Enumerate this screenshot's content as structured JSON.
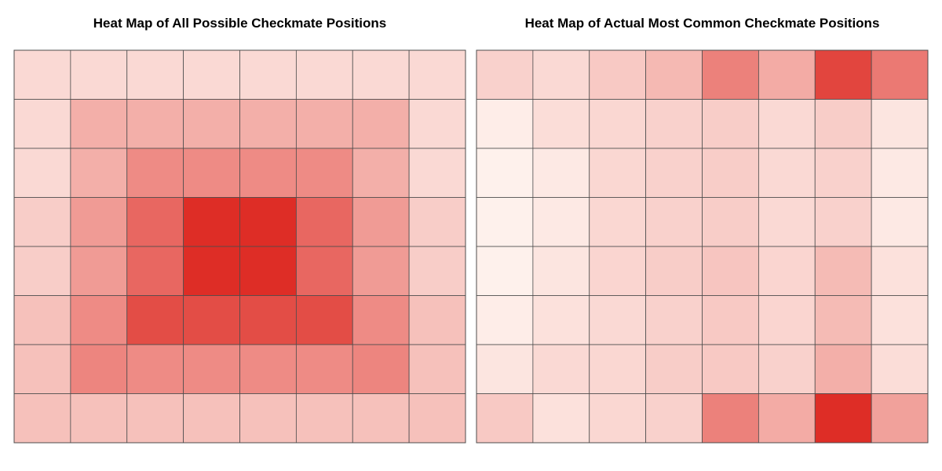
{
  "chart_data": [
    {
      "type": "heatmap",
      "title": "Heat Map of All Possible Checkmate Positions",
      "xlabel": "",
      "ylabel": "",
      "rows": 8,
      "cols": 8,
      "grid": true,
      "color_low": "#fff5f0",
      "color_high": "#de2d26",
      "value_range": [
        0,
        1
      ],
      "values": [
        [
          0.14,
          0.14,
          0.14,
          0.14,
          0.14,
          0.14,
          0.14,
          0.14
        ],
        [
          0.14,
          0.35,
          0.35,
          0.35,
          0.35,
          0.35,
          0.35,
          0.14
        ],
        [
          0.14,
          0.35,
          0.53,
          0.53,
          0.53,
          0.53,
          0.35,
          0.14
        ],
        [
          0.2,
          0.45,
          0.71,
          1.0,
          1.0,
          0.71,
          0.45,
          0.2
        ],
        [
          0.2,
          0.45,
          0.71,
          1.0,
          1.0,
          0.71,
          0.45,
          0.2
        ],
        [
          0.26,
          0.53,
          0.84,
          0.84,
          0.84,
          0.84,
          0.53,
          0.26
        ],
        [
          0.26,
          0.56,
          0.53,
          0.53,
          0.53,
          0.53,
          0.56,
          0.26
        ],
        [
          0.26,
          0.26,
          0.26,
          0.26,
          0.26,
          0.26,
          0.26,
          0.26
        ]
      ]
    },
    {
      "type": "heatmap",
      "title": "Heat Map of Actual Most Common Checkmate Positions",
      "xlabel": "",
      "ylabel": "",
      "rows": 8,
      "cols": 8,
      "grid": true,
      "color_low": "#fff5f0",
      "color_high": "#de2d26",
      "value_range": [
        0,
        1
      ],
      "values": [
        [
          0.18,
          0.14,
          0.22,
          0.3,
          0.58,
          0.37,
          0.88,
          0.62
        ],
        [
          0.04,
          0.12,
          0.15,
          0.18,
          0.2,
          0.14,
          0.2,
          0.08
        ],
        [
          0.02,
          0.06,
          0.15,
          0.18,
          0.2,
          0.14,
          0.18,
          0.06
        ],
        [
          0.02,
          0.06,
          0.15,
          0.18,
          0.2,
          0.14,
          0.18,
          0.06
        ],
        [
          0.02,
          0.08,
          0.16,
          0.2,
          0.24,
          0.16,
          0.29,
          0.1
        ],
        [
          0.04,
          0.1,
          0.14,
          0.18,
          0.22,
          0.16,
          0.29,
          0.1
        ],
        [
          0.08,
          0.14,
          0.15,
          0.2,
          0.22,
          0.18,
          0.35,
          0.12
        ],
        [
          0.22,
          0.1,
          0.15,
          0.18,
          0.58,
          0.37,
          1.0,
          0.42
        ]
      ]
    }
  ]
}
